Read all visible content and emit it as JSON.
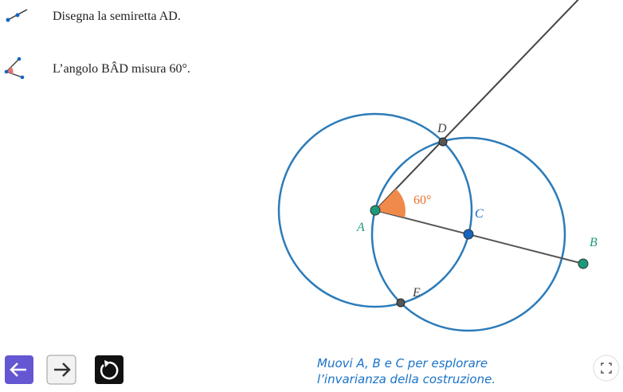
{
  "steps": [
    {
      "text": "Disegna la semiretta AD."
    },
    {
      "text": "L’angolo BÂD misura 60°."
    }
  ],
  "figure": {
    "points": [
      {
        "label": "A"
      },
      {
        "label": "B"
      },
      {
        "label": "C"
      },
      {
        "label": "D"
      },
      {
        "label": "E"
      }
    ],
    "angle_label": "60°"
  },
  "caption": [
    "Muovi A, B e C per esplorare",
    "l’invarianza della costruzione."
  ]
}
